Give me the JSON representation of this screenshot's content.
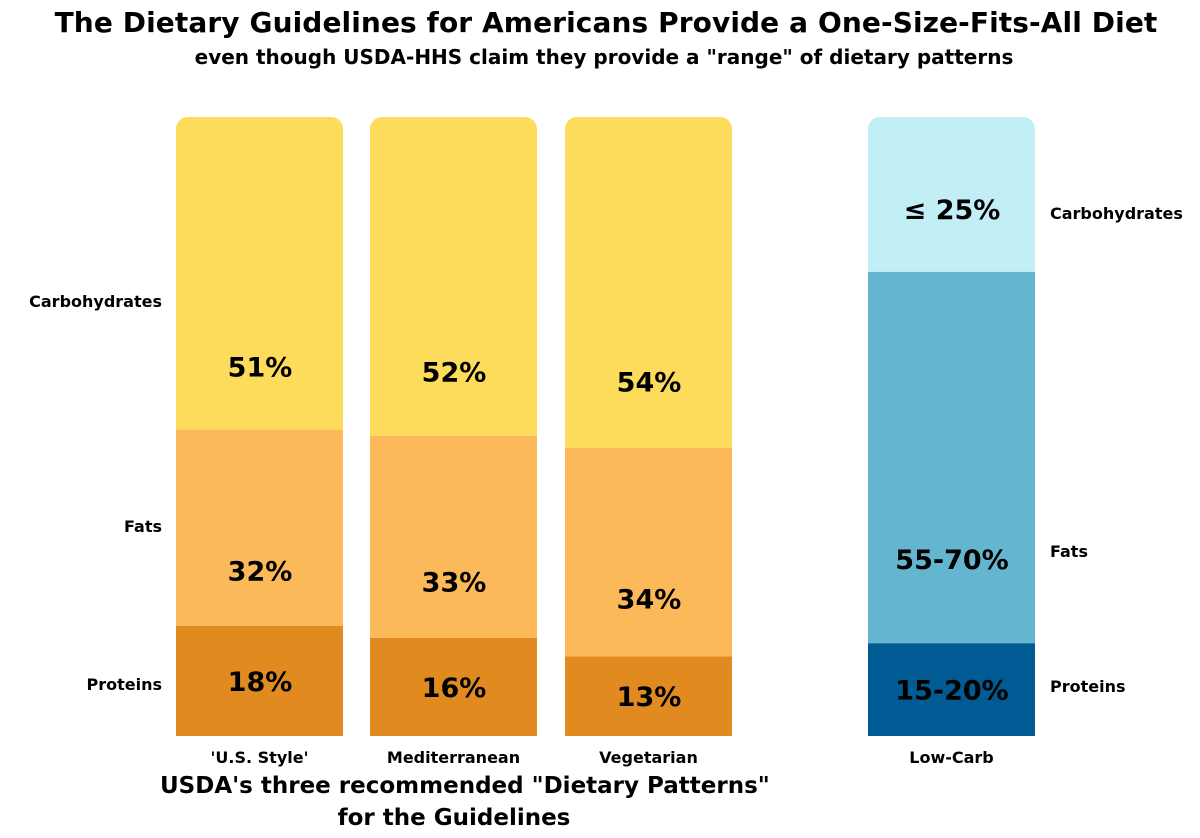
{
  "header": {
    "title": "The Dietary Guidelines for Americans Provide a One-Size-Fits-All Diet",
    "subtitle": "even though USDA-HHS claim they provide a \"range\" of dietary patterns"
  },
  "caption": {
    "line1": "USDA's three recommended \"Dietary Patterns\"",
    "line2": "for the Guidelines"
  },
  "chart_data": {
    "type": "bar",
    "stacked": true,
    "categories": [
      "'U.S. Style'",
      "Mediterranean",
      "Vegetarian",
      "Low-Carb"
    ],
    "components": [
      "Proteins",
      "Fats",
      "Carbohydrates"
    ],
    "groups": [
      {
        "categories": [
          "'U.S. Style'",
          "Mediterranean",
          "Vegetarian"
        ],
        "caption": "USDA's three recommended \"Dietary Patterns\" for the Guidelines",
        "segment_labels": [
          "Carbohydrates",
          "Fats",
          "Proteins"
        ]
      },
      {
        "categories": [
          "Low-Carb"
        ],
        "segment_labels": [
          "Carbohydrates",
          "Fats",
          "Proteins"
        ]
      }
    ],
    "series": [
      {
        "name": "Proteins",
        "values": [
          18,
          16,
          13,
          15
        ],
        "labels": [
          "18%",
          "16%",
          "13%",
          "15-20%"
        ],
        "colors": [
          "#e08a20",
          "#e08a20",
          "#e08a20",
          "#005a94"
        ]
      },
      {
        "name": "Fats",
        "values": [
          32,
          33,
          34,
          60
        ],
        "labels": [
          "32%",
          "33%",
          "34%",
          "55-70%"
        ],
        "colors": [
          "#fbb95a",
          "#fbb95a",
          "#fbb95a",
          "#64b5cf"
        ]
      },
      {
        "name": "Carbohydrates",
        "values": [
          51,
          52,
          54,
          25
        ],
        "labels": [
          "51%",
          "52%",
          "54%",
          "≤ 25%"
        ],
        "colors": [
          "#fddc5c",
          "#fddc5c",
          "#fddc5c",
          "#c2eef6"
        ]
      }
    ],
    "ylim": [
      0,
      100
    ],
    "grid": false,
    "legend": "none"
  }
}
